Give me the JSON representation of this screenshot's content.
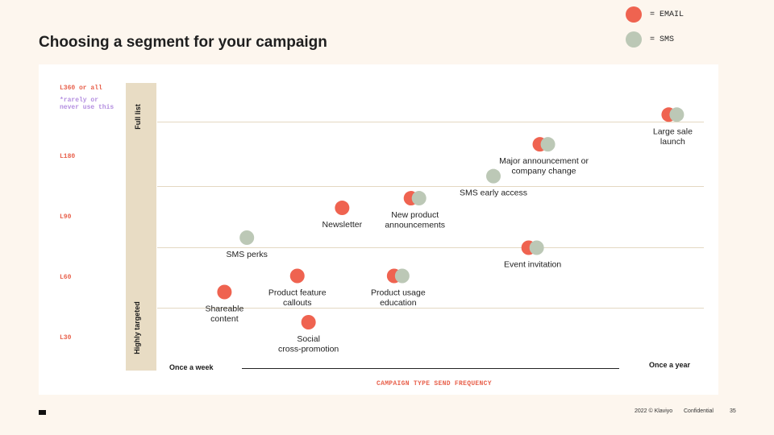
{
  "title": "Choosing a segment for your campaign",
  "legend": [
    {
      "label": "= EMAIL",
      "color": "#ef6350"
    },
    {
      "label": "= SMS",
      "color": "#bcc8b6"
    }
  ],
  "colors": {
    "email": "#ef6350",
    "sms": "#bcc8b6",
    "gridline": "#e4d8c2",
    "accent": "#e8614c",
    "note": "#b48fe0"
  },
  "chart_data": {
    "type": "scatter",
    "title": "Choosing a segment for your campaign",
    "xlabel": "CAMPAIGN TYPE SEND FREQUENCY",
    "x_start_label": "Once a week",
    "x_end_label": "Once a year",
    "ylabel_top": "Full list",
    "ylabel_bottom": "Highly targeted",
    "y_note": [
      "L360 or all",
      "*rarely or",
      "never use this"
    ],
    "y_ticks": [
      {
        "label": "L30",
        "value": 30
      },
      {
        "label": "L60",
        "value": 60
      },
      {
        "label": "L90",
        "value": 90
      },
      {
        "label": "L180",
        "value": 180
      },
      {
        "label": "L360 or all",
        "value": 360
      }
    ],
    "gridlines": [
      45,
      75,
      135,
      270
    ],
    "x_range": [
      0,
      1
    ],
    "series": [
      {
        "name": "Shareable content",
        "label_lines": [
          "Shareable",
          "content"
        ],
        "x": 0.12,
        "y": 53,
        "channels": [
          "email"
        ],
        "label_pos": "below"
      },
      {
        "name": "Social cross-promotion",
        "label_lines": [
          "Social",
          "cross-promotion"
        ],
        "x": 0.27,
        "y": 38,
        "channels": [
          "email"
        ],
        "label_pos": "below"
      },
      {
        "name": "Product feature callouts",
        "label_lines": [
          "Product feature",
          "callouts"
        ],
        "x": 0.25,
        "y": 61,
        "channels": [
          "email"
        ],
        "label_pos": "below"
      },
      {
        "name": "SMS perks",
        "label_lines": [
          "SMS perks"
        ],
        "x": 0.16,
        "y": 80,
        "channels": [
          "sms"
        ],
        "label_pos": "below"
      },
      {
        "name": "Newsletter",
        "label_lines": [
          "Newsletter"
        ],
        "x": 0.33,
        "y": 104,
        "channels": [
          "email"
        ],
        "label_pos": "below"
      },
      {
        "name": "Product usage education",
        "label_lines": [
          "Product usage",
          "education"
        ],
        "x": 0.43,
        "y": 61,
        "channels": [
          "email",
          "sms"
        ],
        "label_pos": "below"
      },
      {
        "name": "New product announcements",
        "label_lines": [
          "New product",
          "announcements"
        ],
        "x": 0.46,
        "y": 118,
        "channels": [
          "email",
          "sms"
        ],
        "label_pos": "below"
      },
      {
        "name": "SMS early access",
        "label_lines": [
          "SMS early access"
        ],
        "x": 0.6,
        "y": 150,
        "channels": [
          "sms"
        ],
        "label_pos": "below"
      },
      {
        "name": "Event invitation",
        "label_lines": [
          "Event invitation"
        ],
        "x": 0.67,
        "y": 75,
        "channels": [
          "email",
          "sms"
        ],
        "label_pos": "below"
      },
      {
        "name": "Major announcement or company change",
        "label_lines": [
          "Major announcement or",
          "company change"
        ],
        "x": 0.69,
        "y": 210,
        "channels": [
          "email",
          "sms"
        ],
        "label_pos": "below"
      },
      {
        "name": "Large sale launch",
        "label_lines": [
          "Large sale",
          "launch"
        ],
        "x": 0.92,
        "y": 290,
        "channels": [
          "email",
          "sms"
        ],
        "label_pos": "below"
      }
    ]
  },
  "footer": {
    "copyright": "2022 © Klaviyo",
    "confidential": "Confidential",
    "page": "35"
  }
}
